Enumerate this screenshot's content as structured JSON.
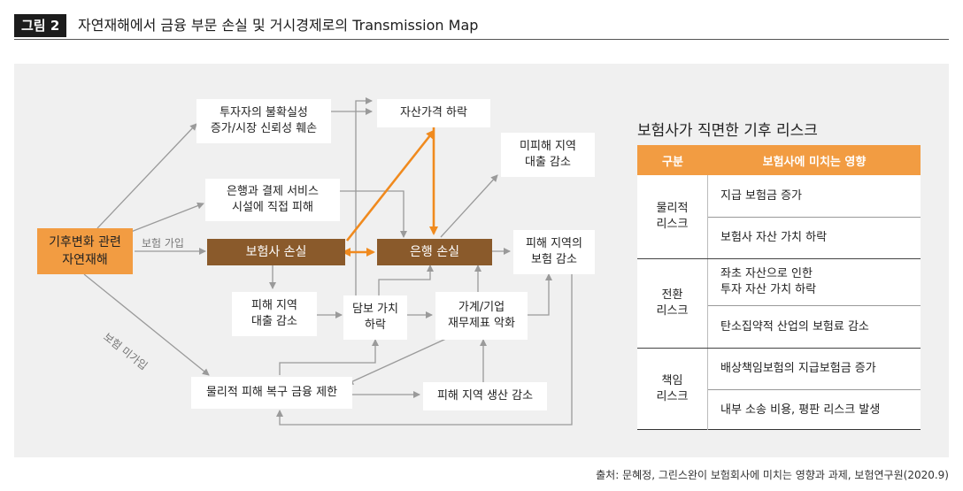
{
  "header": {
    "figure_tag": "그림 2",
    "title": "자연재해에서 금융 부문 손실 및 거시경제로의 Transmission Map"
  },
  "diagram": {
    "nodes": {
      "climate": "기후변화 관련\n자연재해",
      "uncertainty": "투자자의 불확실성\n증가/시장 신뢰성 훼손",
      "asset_price": "자산가격 하락",
      "unaffected_loans": "미피해 지역\n대출 감소",
      "bank_payment": "은행과 결제 서비스\n시설에 직접 피해",
      "insurer_loss": "보험사 손실",
      "bank_loss": "은행 손실",
      "region_insurance": "피해 지역의\n보험 감소",
      "region_loans": "피해 지역\n대출 감소",
      "collateral": "담보 가치\n하락",
      "household_firm": "가계/기업\n재무제표 악화",
      "physical_finance": "물리적 피해 복구 금융 제한",
      "region_production": "피해 지역 생산 감소"
    },
    "edge_labels": {
      "insured": "보험 가입",
      "uninsured": "보험 미가입"
    },
    "colors": {
      "orange": "#f29c42",
      "brown": "#8a5a2b",
      "gray_arrow": "#9a9a9a",
      "panel": "#f0f0f0"
    }
  },
  "risk_table": {
    "title": "보험사가 직면한 기후 리스크",
    "headers": [
      "구분",
      "보험사에 미치는 영향"
    ],
    "groups": [
      {
        "category": "물리적\n리스크",
        "items": [
          "지급 보험금 증가",
          "보험사 자산 가치 하락"
        ]
      },
      {
        "category": "전환\n리스크",
        "items": [
          "좌초 자산으로 인한\n투자 자산 가치 하락",
          "탄소집약적 산업의 보험료 감소"
        ]
      },
      {
        "category": "책임\n리스크",
        "items": [
          "배상책임보험의 지급보험금 증가",
          "내부 소송 비용, 평판 리스크 발생"
        ]
      }
    ]
  },
  "source": "출처: 문혜정, 그린스완이 보험회사에 미치는 영향과 과제, 보험연구원(2020.9)"
}
